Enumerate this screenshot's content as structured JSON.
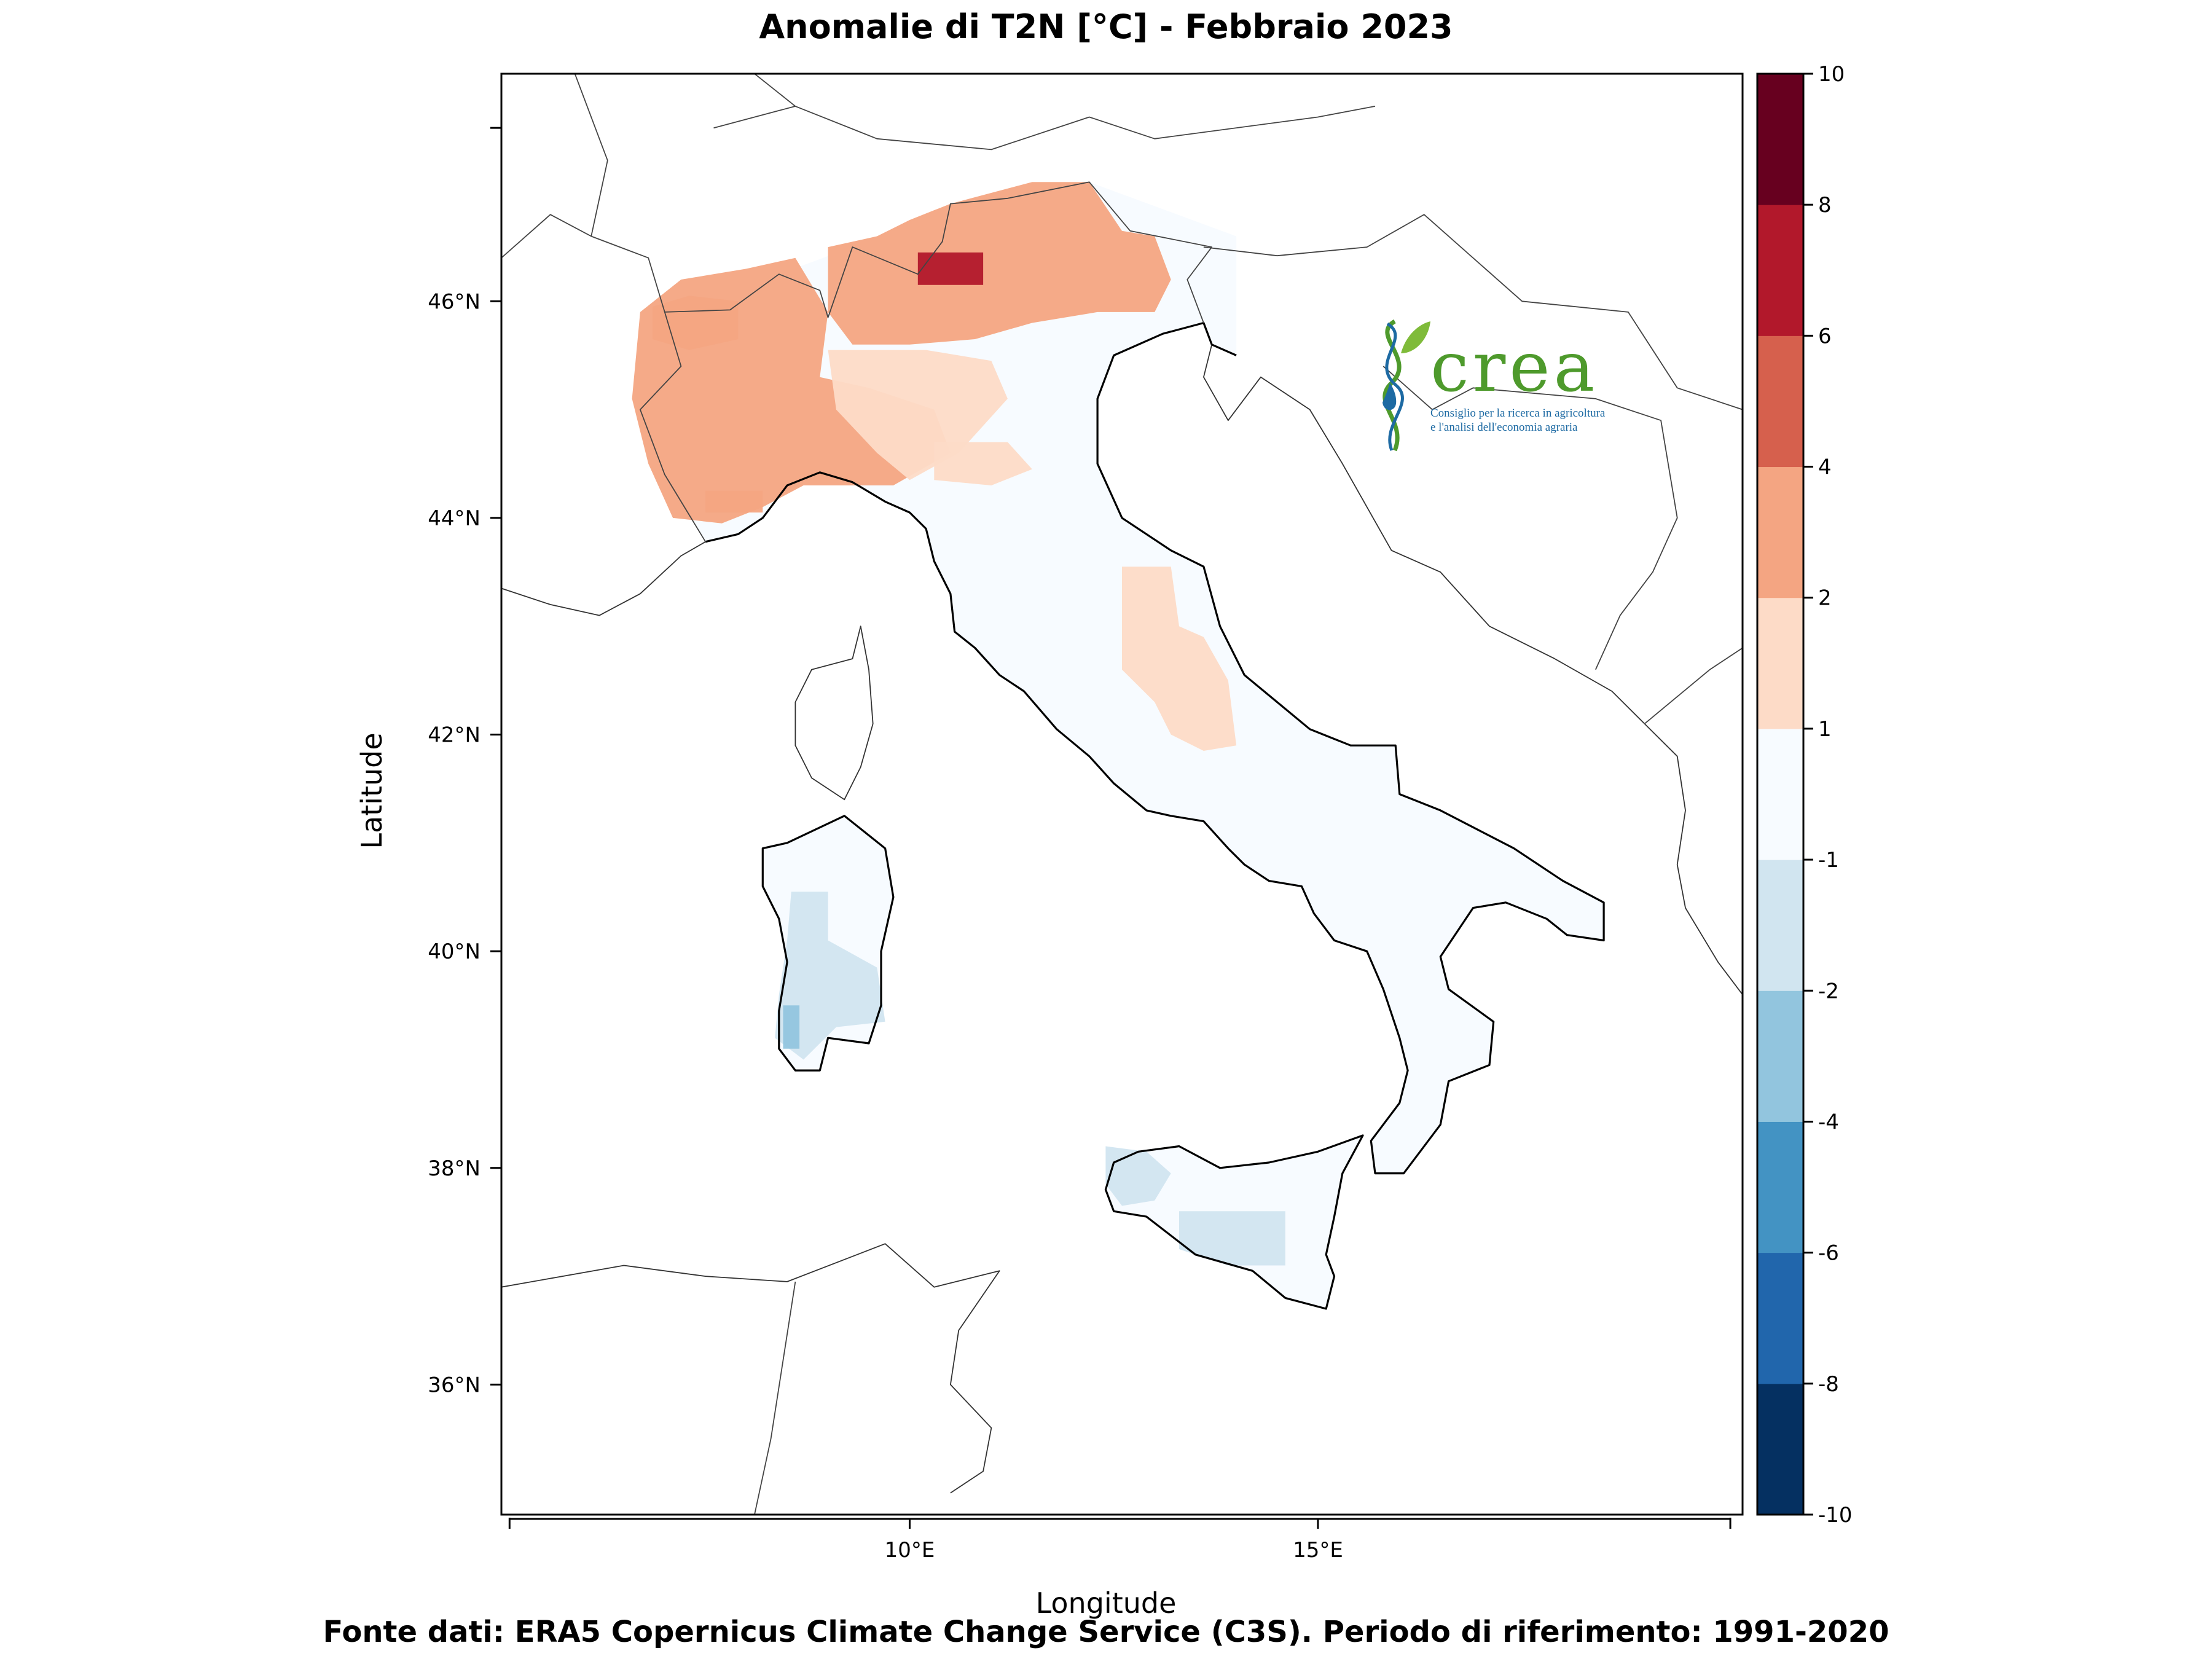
{
  "title": "Anomalie di T2N  [°C] - Febbraio 2023",
  "footer": "Fonte dati: ERA5 Copernicus Climate Change Service (C3S). Periodo di riferimento: 1991-2020",
  "xlabel": "Longitude",
  "ylabel": "Latitude",
  "x_ticks": [
    {
      "value": 10,
      "label": "10°E"
    },
    {
      "value": 15,
      "label": "15°E"
    }
  ],
  "y_ticks": [
    {
      "value": 36,
      "label": "36°N"
    },
    {
      "value": 38,
      "label": "38°N"
    },
    {
      "value": 40,
      "label": "40°N"
    },
    {
      "value": 42,
      "label": "42°N"
    },
    {
      "value": 44,
      "label": "44°N"
    },
    {
      "value": 46,
      "label": "46°N"
    }
  ],
  "extent": {
    "lon": [
      5,
      20.2
    ],
    "lat": [
      34.8,
      48.1
    ]
  },
  "colorbar": {
    "levels": [
      -10,
      -8,
      -6,
      -4,
      -2,
      -1,
      1,
      2,
      4,
      6,
      8,
      10
    ],
    "labels": [
      "-10",
      "-8",
      "-6",
      "-4",
      "-2",
      "-1",
      "1",
      "2",
      "4",
      "6",
      "8",
      "10"
    ],
    "colors": [
      "#053061",
      "#2166ac",
      "#4393c3",
      "#92c5de",
      "#d1e5f0",
      "#f7fbff",
      "#fddbc7",
      "#f4a582",
      "#d6604d",
      "#b2182b",
      "#67001f"
    ]
  },
  "logo": {
    "word": "crea",
    "subtitle": "Consiglio per la ricerca in agricoltura\ne l'analisi dell'economia agraria",
    "color_green": "#4e9a2c",
    "color_blue": "#1d6aa3"
  },
  "anomaly_regions": [
    {
      "name": "western-alps-piemonte",
      "value": 2.5,
      "polygon": [
        [
          6.7,
          45.9
        ],
        [
          7.2,
          46.2
        ],
        [
          8.0,
          46.3
        ],
        [
          8.6,
          46.4
        ],
        [
          9.0,
          45.9
        ],
        [
          8.9,
          45.3
        ],
        [
          9.5,
          45.2
        ],
        [
          10.3,
          45.0
        ],
        [
          10.5,
          44.6
        ],
        [
          9.8,
          44.3
        ],
        [
          8.7,
          44.3
        ],
        [
          8.2,
          44.1
        ],
        [
          7.7,
          43.95
        ],
        [
          7.1,
          44.0
        ],
        [
          6.8,
          44.5
        ],
        [
          6.6,
          45.1
        ]
      ]
    },
    {
      "name": "valle-d-aosta",
      "value": 3.2,
      "polygon": [
        [
          6.85,
          45.95
        ],
        [
          7.3,
          46.05
        ],
        [
          7.9,
          46.0
        ],
        [
          7.9,
          45.65
        ],
        [
          7.3,
          45.55
        ],
        [
          6.85,
          45.65
        ]
      ]
    },
    {
      "name": "ligurian-coast",
      "value": 3.1,
      "polygon": [
        [
          7.5,
          44.25
        ],
        [
          8.2,
          44.25
        ],
        [
          8.2,
          44.05
        ],
        [
          7.5,
          44.05
        ]
      ]
    },
    {
      "name": "central-alps",
      "value": 3.5,
      "polygon": [
        [
          9.0,
          46.5
        ],
        [
          9.6,
          46.6
        ],
        [
          10.0,
          46.75
        ],
        [
          10.5,
          46.9
        ],
        [
          11.0,
          47.0
        ],
        [
          11.5,
          47.1
        ],
        [
          12.2,
          47.1
        ],
        [
          12.6,
          46.65
        ],
        [
          13.0,
          46.6
        ],
        [
          13.2,
          46.2
        ],
        [
          13.0,
          45.9
        ],
        [
          12.3,
          45.9
        ],
        [
          11.5,
          45.8
        ],
        [
          10.8,
          45.65
        ],
        [
          10.0,
          45.6
        ],
        [
          9.3,
          45.6
        ],
        [
          9.0,
          45.9
        ]
      ]
    },
    {
      "name": "lombardia-veneto-plain",
      "value": 1.5,
      "polygon": [
        [
          9.0,
          45.55
        ],
        [
          10.2,
          45.55
        ],
        [
          11.0,
          45.45
        ],
        [
          11.2,
          45.1
        ],
        [
          10.6,
          44.6
        ],
        [
          10.0,
          44.35
        ],
        [
          9.6,
          44.6
        ],
        [
          9.1,
          45.0
        ]
      ]
    },
    {
      "name": "emilia-apennines",
      "value": 1.4,
      "polygon": [
        [
          10.3,
          44.7
        ],
        [
          11.2,
          44.7
        ],
        [
          11.5,
          44.45
        ],
        [
          11.0,
          44.3
        ],
        [
          10.3,
          44.35
        ]
      ]
    },
    {
      "name": "ortles-core",
      "value": 6.6,
      "polygon": [
        [
          10.1,
          46.45
        ],
        [
          10.9,
          46.45
        ],
        [
          10.9,
          46.15
        ],
        [
          10.1,
          46.15
        ]
      ]
    },
    {
      "name": "central-apennines",
      "value": 1.6,
      "polygon": [
        [
          12.6,
          43.55
        ],
        [
          13.2,
          43.55
        ],
        [
          13.3,
          43.0
        ],
        [
          13.6,
          42.9
        ],
        [
          13.9,
          42.5
        ],
        [
          14.0,
          41.9
        ],
        [
          13.6,
          41.85
        ],
        [
          13.2,
          42.0
        ],
        [
          13.0,
          42.3
        ],
        [
          12.6,
          42.6
        ]
      ]
    },
    {
      "name": "west-sardinia",
      "value": -1.7,
      "polygon": [
        [
          8.55,
          40.55
        ],
        [
          9.0,
          40.55
        ],
        [
          9.0,
          40.1
        ],
        [
          9.6,
          39.85
        ],
        [
          9.7,
          39.35
        ],
        [
          9.1,
          39.3
        ],
        [
          8.7,
          39.0
        ],
        [
          8.35,
          39.2
        ],
        [
          8.4,
          39.6
        ],
        [
          8.5,
          40.1
        ]
      ]
    },
    {
      "name": "sardinia-core-cold",
      "value": -2.6,
      "polygon": [
        [
          8.45,
          39.5
        ],
        [
          8.65,
          39.5
        ],
        [
          8.65,
          39.1
        ],
        [
          8.45,
          39.1
        ]
      ]
    },
    {
      "name": "west-sicily",
      "value": -1.4,
      "polygon": [
        [
          12.4,
          38.2
        ],
        [
          12.9,
          38.15
        ],
        [
          13.2,
          37.95
        ],
        [
          13.0,
          37.7
        ],
        [
          12.6,
          37.65
        ],
        [
          12.4,
          37.85
        ]
      ]
    },
    {
      "name": "south-sicily",
      "value": -1.3,
      "polygon": [
        [
          13.3,
          37.6
        ],
        [
          14.6,
          37.6
        ],
        [
          14.6,
          37.1
        ],
        [
          13.9,
          37.1
        ],
        [
          13.3,
          37.25
        ]
      ]
    }
  ],
  "coastlines": {
    "italy_mainland": [
      [
        7.5,
        43.78
      ],
      [
        7.9,
        43.85
      ],
      [
        8.2,
        44.0
      ],
      [
        8.5,
        44.3
      ],
      [
        8.9,
        44.42
      ],
      [
        9.3,
        44.33
      ],
      [
        9.7,
        44.15
      ],
      [
        10.0,
        44.05
      ],
      [
        10.2,
        43.9
      ],
      [
        10.3,
        43.6
      ],
      [
        10.5,
        43.3
      ],
      [
        10.55,
        42.95
      ],
      [
        10.8,
        42.8
      ],
      [
        11.1,
        42.55
      ],
      [
        11.4,
        42.4
      ],
      [
        11.8,
        42.05
      ],
      [
        12.2,
        41.8
      ],
      [
        12.5,
        41.55
      ],
      [
        12.9,
        41.3
      ],
      [
        13.2,
        41.25
      ],
      [
        13.6,
        41.2
      ],
      [
        13.9,
        40.95
      ],
      [
        14.1,
        40.8
      ],
      [
        14.4,
        40.65
      ],
      [
        14.8,
        40.6
      ],
      [
        14.95,
        40.35
      ],
      [
        15.2,
        40.1
      ],
      [
        15.6,
        40.0
      ],
      [
        15.8,
        39.65
      ],
      [
        16.0,
        39.2
      ],
      [
        16.1,
        38.9
      ],
      [
        16.0,
        38.6
      ],
      [
        15.65,
        38.25
      ],
      [
        15.7,
        37.95
      ],
      [
        16.05,
        37.95
      ],
      [
        16.5,
        38.4
      ],
      [
        16.6,
        38.8
      ],
      [
        17.1,
        38.95
      ],
      [
        17.15,
        39.35
      ],
      [
        16.6,
        39.65
      ],
      [
        16.5,
        39.95
      ],
      [
        16.9,
        40.4
      ],
      [
        17.3,
        40.45
      ],
      [
        17.8,
        40.3
      ],
      [
        18.05,
        40.15
      ],
      [
        18.5,
        40.1
      ],
      [
        18.5,
        40.45
      ],
      [
        18.0,
        40.65
      ],
      [
        17.4,
        40.95
      ],
      [
        16.5,
        41.3
      ],
      [
        16.0,
        41.45
      ],
      [
        15.95,
        41.9
      ],
      [
        15.4,
        41.9
      ],
      [
        14.9,
        42.05
      ],
      [
        14.5,
        42.3
      ],
      [
        14.1,
        42.55
      ],
      [
        13.8,
        43.0
      ],
      [
        13.6,
        43.55
      ],
      [
        13.2,
        43.7
      ],
      [
        12.6,
        44.0
      ],
      [
        12.3,
        44.5
      ],
      [
        12.3,
        45.1
      ],
      [
        12.5,
        45.5
      ],
      [
        13.1,
        45.7
      ],
      [
        13.6,
        45.8
      ],
      [
        13.7,
        45.6
      ],
      [
        14.0,
        45.5
      ]
    ],
    "sicily": [
      [
        12.4,
        37.8
      ],
      [
        12.5,
        38.05
      ],
      [
        12.8,
        38.15
      ],
      [
        13.3,
        38.2
      ],
      [
        13.8,
        38.0
      ],
      [
        14.4,
        38.05
      ],
      [
        15.0,
        38.15
      ],
      [
        15.55,
        38.3
      ],
      [
        15.3,
        37.95
      ],
      [
        15.2,
        37.55
      ],
      [
        15.1,
        37.2
      ],
      [
        15.2,
        37.0
      ],
      [
        15.1,
        36.7
      ],
      [
        14.6,
        36.8
      ],
      [
        14.2,
        37.05
      ],
      [
        13.5,
        37.2
      ],
      [
        12.9,
        37.55
      ],
      [
        12.5,
        37.6
      ]
    ],
    "sardinia": [
      [
        8.2,
        40.95
      ],
      [
        8.5,
        41.0
      ],
      [
        9.2,
        41.25
      ],
      [
        9.7,
        40.95
      ],
      [
        9.8,
        40.5
      ],
      [
        9.65,
        40.0
      ],
      [
        9.65,
        39.5
      ],
      [
        9.5,
        39.15
      ],
      [
        9.0,
        39.2
      ],
      [
        8.9,
        38.9
      ],
      [
        8.6,
        38.9
      ],
      [
        8.4,
        39.1
      ],
      [
        8.4,
        39.45
      ],
      [
        8.5,
        39.9
      ],
      [
        8.4,
        40.3
      ],
      [
        8.2,
        40.6
      ]
    ],
    "corsica": [
      [
        9.4,
        43.0
      ],
      [
        9.5,
        42.6
      ],
      [
        9.55,
        42.1
      ],
      [
        9.4,
        41.7
      ],
      [
        9.2,
        41.4
      ],
      [
        8.8,
        41.6
      ],
      [
        8.6,
        41.9
      ],
      [
        8.6,
        42.3
      ],
      [
        8.8,
        42.6
      ],
      [
        9.3,
        42.7
      ]
    ],
    "balkans": [
      [
        13.7,
        45.6
      ],
      [
        13.6,
        45.3
      ],
      [
        13.9,
        44.9
      ],
      [
        14.3,
        45.3
      ],
      [
        14.9,
        45.0
      ],
      [
        15.3,
        44.5
      ],
      [
        15.9,
        43.7
      ],
      [
        16.5,
        43.5
      ],
      [
        17.1,
        43.0
      ],
      [
        17.9,
        42.7
      ],
      [
        18.6,
        42.4
      ],
      [
        19.0,
        42.1
      ],
      [
        19.4,
        41.8
      ],
      [
        19.5,
        41.3
      ],
      [
        19.4,
        40.8
      ],
      [
        19.5,
        40.4
      ],
      [
        19.9,
        39.9
      ],
      [
        20.2,
        39.6
      ]
    ],
    "north_africa": [
      [
        5.0,
        36.9
      ],
      [
        6.5,
        37.1
      ],
      [
        7.5,
        37.0
      ],
      [
        8.5,
        36.95
      ],
      [
        9.7,
        37.3
      ],
      [
        10.3,
        36.9
      ],
      [
        11.1,
        37.05
      ],
      [
        10.6,
        36.5
      ],
      [
        10.5,
        36.0
      ],
      [
        11.0,
        35.6
      ],
      [
        10.9,
        35.2
      ],
      [
        10.5,
        35.0
      ]
    ],
    "france_coast": [
      [
        5.0,
        43.35
      ],
      [
        5.6,
        43.2
      ],
      [
        6.2,
        43.1
      ],
      [
        6.7,
        43.3
      ],
      [
        7.2,
        43.65
      ],
      [
        7.5,
        43.78
      ]
    ]
  },
  "borders": [
    [
      [
        5.0,
        46.4
      ],
      [
        5.6,
        46.8
      ],
      [
        6.1,
        46.6
      ],
      [
        6.8,
        46.4
      ],
      [
        7.0,
        45.9
      ],
      [
        7.2,
        45.4
      ],
      [
        6.7,
        45.0
      ],
      [
        7.0,
        44.4
      ],
      [
        7.5,
        43.78
      ]
    ],
    [
      [
        7.0,
        45.9
      ],
      [
        7.8,
        45.92
      ],
      [
        8.4,
        46.25
      ],
      [
        8.9,
        46.1
      ],
      [
        9.0,
        45.85
      ],
      [
        9.3,
        46.5
      ],
      [
        10.1,
        46.25
      ],
      [
        10.4,
        46.55
      ],
      [
        10.5,
        46.9
      ],
      [
        11.2,
        46.95
      ],
      [
        12.2,
        47.1
      ],
      [
        12.7,
        46.65
      ],
      [
        13.7,
        46.5
      ],
      [
        13.4,
        46.2
      ],
      [
        13.6,
        45.8
      ]
    ],
    [
      [
        13.6,
        46.5
      ],
      [
        14.5,
        46.42
      ],
      [
        15.6,
        46.5
      ],
      [
        16.3,
        46.8
      ],
      [
        17.5,
        46.0
      ],
      [
        18.8,
        45.9
      ],
      [
        19.4,
        45.2
      ],
      [
        20.2,
        45.0
      ]
    ],
    [
      [
        15.7,
        47.8
      ],
      [
        15.0,
        47.7
      ],
      [
        13.0,
        47.5
      ],
      [
        12.2,
        47.7
      ],
      [
        11.0,
        47.4
      ],
      [
        9.6,
        47.5
      ],
      [
        8.6,
        47.8
      ],
      [
        7.6,
        47.6
      ]
    ],
    [
      [
        5.9,
        48.1
      ],
      [
        6.3,
        47.3
      ],
      [
        6.1,
        46.6
      ]
    ],
    [
      [
        8.1,
        48.1
      ],
      [
        8.6,
        47.8
      ]
    ],
    [
      [
        15.8,
        45.4
      ],
      [
        16.4,
        45.0
      ],
      [
        16.9,
        45.2
      ],
      [
        18.4,
        45.1
      ],
      [
        19.2,
        44.9
      ],
      [
        19.4,
        44.0
      ],
      [
        19.1,
        43.5
      ],
      [
        18.7,
        43.1
      ],
      [
        18.4,
        42.6
      ]
    ],
    [
      [
        19.0,
        42.1
      ],
      [
        19.8,
        42.6
      ],
      [
        20.2,
        42.8
      ]
    ],
    [
      [
        8.6,
        36.95
      ],
      [
        8.3,
        35.5
      ],
      [
        8.1,
        34.8
      ]
    ]
  ]
}
